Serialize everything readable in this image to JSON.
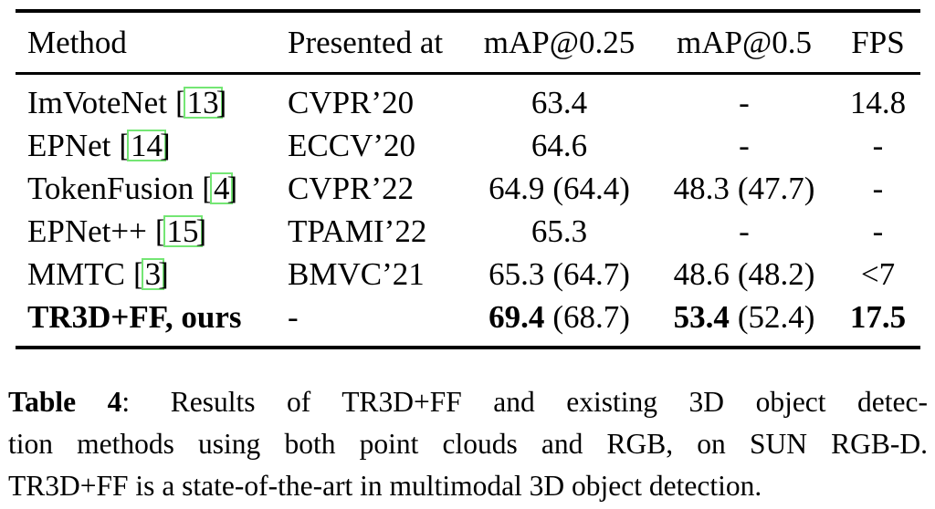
{
  "table": {
    "cite_open": "[",
    "cite_close": "]",
    "columns": [
      "Method",
      "Presented at",
      "mAP@0.25",
      "mAP@0.5",
      "FPS"
    ],
    "rows": [
      {
        "method": "ImVoteNet",
        "cite": "13",
        "venue": "CVPR’20",
        "map25": "63.4",
        "map25_paren": "",
        "map50": "-",
        "map50_paren": "",
        "fps": "14.8"
      },
      {
        "method": "EPNet",
        "cite": "14",
        "venue": "ECCV’20",
        "map25": "64.6",
        "map25_paren": "",
        "map50": "-",
        "map50_paren": "",
        "fps": "-"
      },
      {
        "method": "TokenFusion",
        "cite": "4",
        "venue": "CVPR’22",
        "map25": "64.9",
        "map25_paren": "(64.4)",
        "map50": "48.3",
        "map50_paren": "(47.7)",
        "fps": "-"
      },
      {
        "method": "EPNet++",
        "cite": "15",
        "venue": "TPAMI’22",
        "map25": "65.3",
        "map25_paren": "",
        "map50": "-",
        "map50_paren": "",
        "fps": "-"
      },
      {
        "method": "MMTC",
        "cite": "3",
        "venue": "BMVC’21",
        "map25": "65.3",
        "map25_paren": "(64.7)",
        "map50": "48.6",
        "map50_paren": "(48.2)",
        "fps": "<7"
      },
      {
        "method": "TR3D+FF, ours",
        "venue": "-",
        "map25": "69.4",
        "map25_paren": "(68.7)",
        "map50": "53.4",
        "map50_paren": "(52.4)",
        "fps": "17.5"
      }
    ]
  },
  "caption": {
    "label": "Table 4",
    "separator": ":",
    "line1_rest": "Results of TR3D+FF and existing 3D object detec-",
    "line2": "tion methods using both point clouds and RGB, on SUN RGB-D.",
    "line3": "TR3D+FF is a state-of-the-art in multimodal 3D object detection."
  },
  "colors": {
    "cite_border": "#74e674",
    "rule": "#000000"
  }
}
